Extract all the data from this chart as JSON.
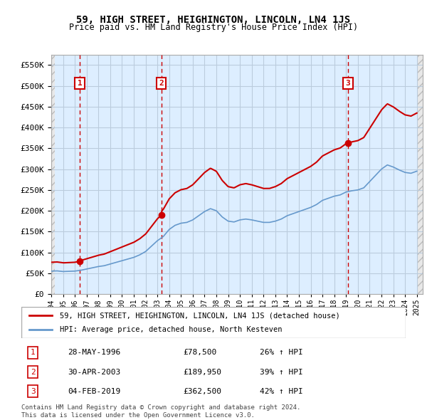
{
  "title": "59, HIGH STREET, HEIGHINGTON, LINCOLN, LN4 1JS",
  "subtitle": "Price paid vs. HM Land Registry's House Price Index (HPI)",
  "sale_dates": [
    "1996-05-28",
    "2003-04-30",
    "2019-02-04"
  ],
  "sale_prices": [
    78500,
    189950,
    362500
  ],
  "sale_labels": [
    "1",
    "2",
    "3"
  ],
  "sale_pct": [
    "26% ↑ HPI",
    "39% ↑ HPI",
    "42% ↑ HPI"
  ],
  "sale_dates_str": [
    "28-MAY-1996",
    "30-APR-2003",
    "04-FEB-2019"
  ],
  "legend_line1": "59, HIGH STREET, HEIGHINGTON, LINCOLN, LN4 1JS (detached house)",
  "legend_line2": "HPI: Average price, detached house, North Kesteven",
  "footer1": "Contains HM Land Registry data © Crown copyright and database right 2024.",
  "footer2": "This data is licensed under the Open Government Licence v3.0.",
  "ylabel": "",
  "ylim": [
    0,
    575000
  ],
  "yticks": [
    0,
    50000,
    100000,
    150000,
    200000,
    250000,
    300000,
    350000,
    400000,
    450000,
    500000,
    550000
  ],
  "ytick_labels": [
    "£0",
    "£50K",
    "£100K",
    "£150K",
    "£200K",
    "£250K",
    "£300K",
    "£350K",
    "£400K",
    "£450K",
    "£500K",
    "£550K"
  ],
  "hpi_color": "#6699cc",
  "price_color": "#cc0000",
  "dot_color": "#cc0000",
  "vline_color": "#cc0000",
  "box_color": "#cc0000",
  "grid_color": "#bbccdd",
  "bg_color": "#ddeeff",
  "hatch_color": "#cccccc",
  "xlim_start": 1994.0,
  "xlim_end": 2025.5
}
